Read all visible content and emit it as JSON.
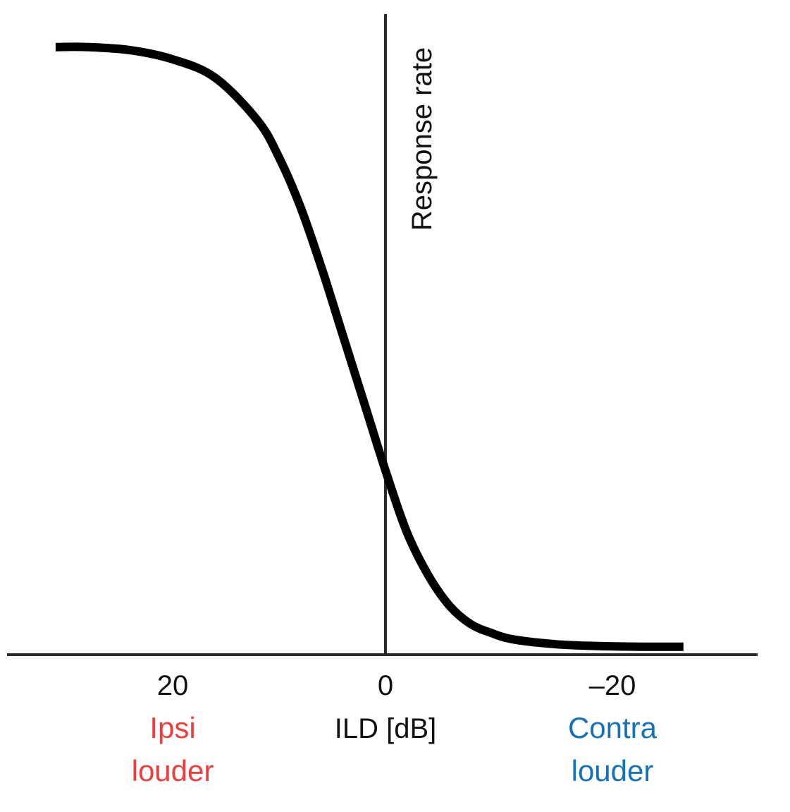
{
  "chart_data": {
    "type": "line",
    "title": "",
    "xlabel": "ILD [dB]",
    "ylabel": "Response rate",
    "x_ticks": [
      20,
      0,
      -20
    ],
    "x_tick_labels": [
      "20",
      "0",
      "–20"
    ],
    "xlim": [
      31,
      -30
    ],
    "ylim": [
      0,
      1
    ],
    "x_reversed": true,
    "grid": false,
    "legend": "none",
    "series": [
      {
        "x": [
          31,
          28,
          24,
          20,
          16,
          12,
          10,
          8,
          6,
          4,
          2,
          0,
          -2,
          -4,
          -6,
          -8,
          -10,
          -12,
          -16,
          -20,
          -24,
          -28
        ],
        "values": [
          0.99,
          0.99,
          0.985,
          0.97,
          0.94,
          0.87,
          0.81,
          0.73,
          0.63,
          0.52,
          0.41,
          0.3,
          0.2,
          0.13,
          0.08,
          0.05,
          0.035,
          0.025,
          0.017,
          0.014,
          0.013,
          0.013
        ],
        "color": "#000000"
      }
    ],
    "side_labels": {
      "left": {
        "line1": "Ipsi",
        "line2": "louder",
        "color": "#ee3d3d"
      },
      "right": {
        "line1": "Contra",
        "line2": "louder",
        "color": "#1572b6"
      }
    }
  }
}
